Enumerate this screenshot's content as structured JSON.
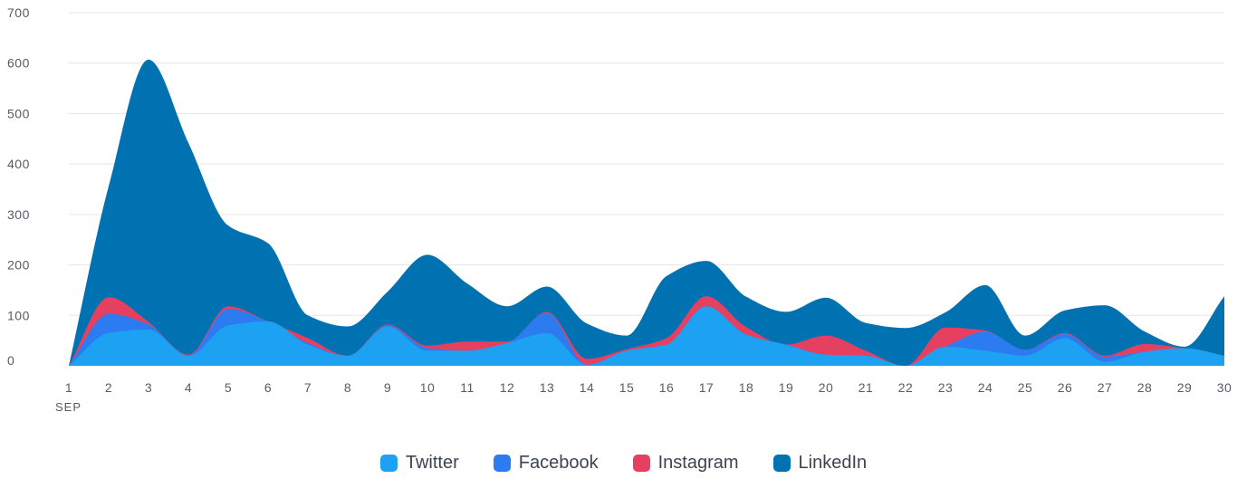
{
  "chart_data": {
    "type": "area",
    "stacked": true,
    "y_ticks": [
      "0",
      "100",
      "200",
      "300",
      "400",
      "500",
      "600",
      "700"
    ],
    "ylim": [
      0,
      700
    ],
    "grid": true,
    "x": [
      "1",
      "2",
      "3",
      "4",
      "5",
      "6",
      "7",
      "8",
      "9",
      "10",
      "11",
      "12",
      "13",
      "14",
      "15",
      "16",
      "17",
      "18",
      "19",
      "20",
      "21",
      "22",
      "23",
      "24",
      "25",
      "26",
      "27",
      "28",
      "29",
      "30"
    ],
    "x_sublabel": "SEP",
    "legend_position": "bottom",
    "series": [
      {
        "name": "Twitter",
        "color": "#1da1f2",
        "values": [
          0,
          65,
          72,
          20,
          80,
          88,
          42,
          20,
          78,
          30,
          30,
          45,
          65,
          2,
          30,
          42,
          118,
          62,
          42,
          22,
          20,
          0,
          38,
          30,
          20,
          55,
          8,
          28,
          35,
          20
        ]
      },
      {
        "name": "Facebook",
        "color": "#2d7bf0",
        "values": [
          0,
          38,
          10,
          0,
          33,
          0,
          3,
          0,
          2,
          5,
          0,
          0,
          40,
          0,
          0,
          0,
          0,
          0,
          0,
          0,
          0,
          0,
          0,
          38,
          12,
          8,
          10,
          0,
          0,
          0
        ]
      },
      {
        "name": "Instagram",
        "color": "#e64060",
        "values": [
          0,
          33,
          5,
          2,
          5,
          0,
          10,
          0,
          2,
          5,
          18,
          3,
          2,
          12,
          3,
          13,
          20,
          15,
          0,
          38,
          10,
          0,
          38,
          2,
          0,
          2,
          2,
          15,
          0,
          0
        ]
      },
      {
        "name": "LinkedIn",
        "color": "#0072b1",
        "values": [
          0,
          220,
          520,
          420,
          160,
          155,
          45,
          58,
          65,
          180,
          115,
          70,
          50,
          70,
          27,
          123,
          70,
          60,
          65,
          75,
          55,
          75,
          30,
          90,
          28,
          45,
          100,
          25,
          3,
          118
        ]
      }
    ]
  }
}
